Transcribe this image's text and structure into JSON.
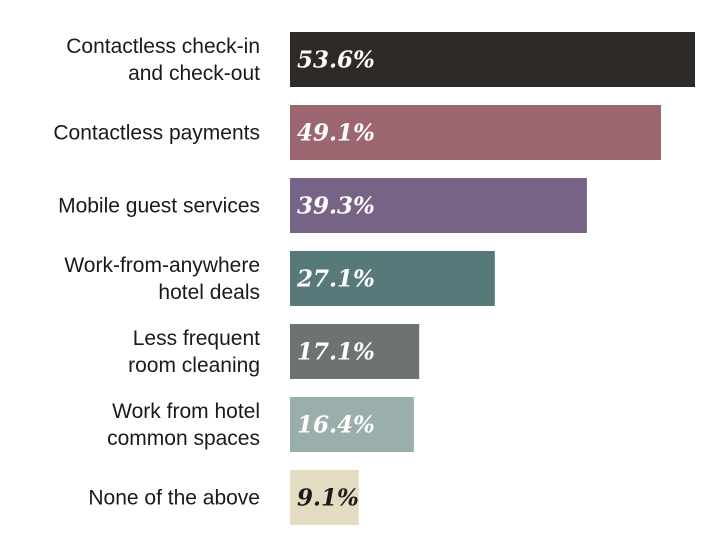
{
  "chart_data": {
    "type": "bar",
    "orientation": "horizontal",
    "categories": [
      "Contactless check-in\nand check-out",
      "Contactless payments",
      "Mobile guest services",
      "Work-from-anywhere\nhotel deals",
      "Less frequent\nroom cleaning",
      "Work from hotel\ncommon spaces",
      "None of the above"
    ],
    "values": [
      53.6,
      49.1,
      39.3,
      27.1,
      17.1,
      16.4,
      9.1
    ],
    "value_labels": [
      "53.6%",
      "49.1%",
      "39.3%",
      "27.1%",
      "17.1%",
      "16.4%",
      "9.1%"
    ],
    "bar_colors": [
      "#2e2a27",
      "#9b6670",
      "#766386",
      "#57797a",
      "#6d7373",
      "#9aafac",
      "#e3dbc2"
    ],
    "label_colors": [
      "#ffffff",
      "#ffffff",
      "#ffffff",
      "#ffffff",
      "#ffffff",
      "#ffffff",
      "#1a1a1a"
    ],
    "title": "",
    "xlabel": "",
    "ylabel": "",
    "xlim": [
      0,
      53.6
    ],
    "grid": false,
    "legend": "none"
  }
}
